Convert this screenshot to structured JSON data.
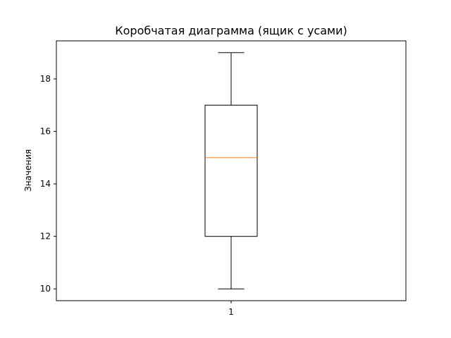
{
  "chart_data": {
    "type": "box",
    "title": "Коробчатая диаграмма (ящик с усами)",
    "xlabel": "",
    "ylabel": "Значения",
    "ylim": [
      9.55,
      19.45
    ],
    "yticks": [
      10,
      12,
      14,
      16,
      18
    ],
    "ytick_labels": [
      "10",
      "12",
      "14",
      "16",
      "18"
    ],
    "categories": [
      "1"
    ],
    "boxes": [
      {
        "category": "1",
        "min": 10,
        "q1": 12,
        "median": 15,
        "q3": 17,
        "max": 19
      }
    ],
    "grid": false,
    "colors": {
      "box": "#000000",
      "median": "#ff7f0e",
      "whisker": "#000000"
    }
  }
}
